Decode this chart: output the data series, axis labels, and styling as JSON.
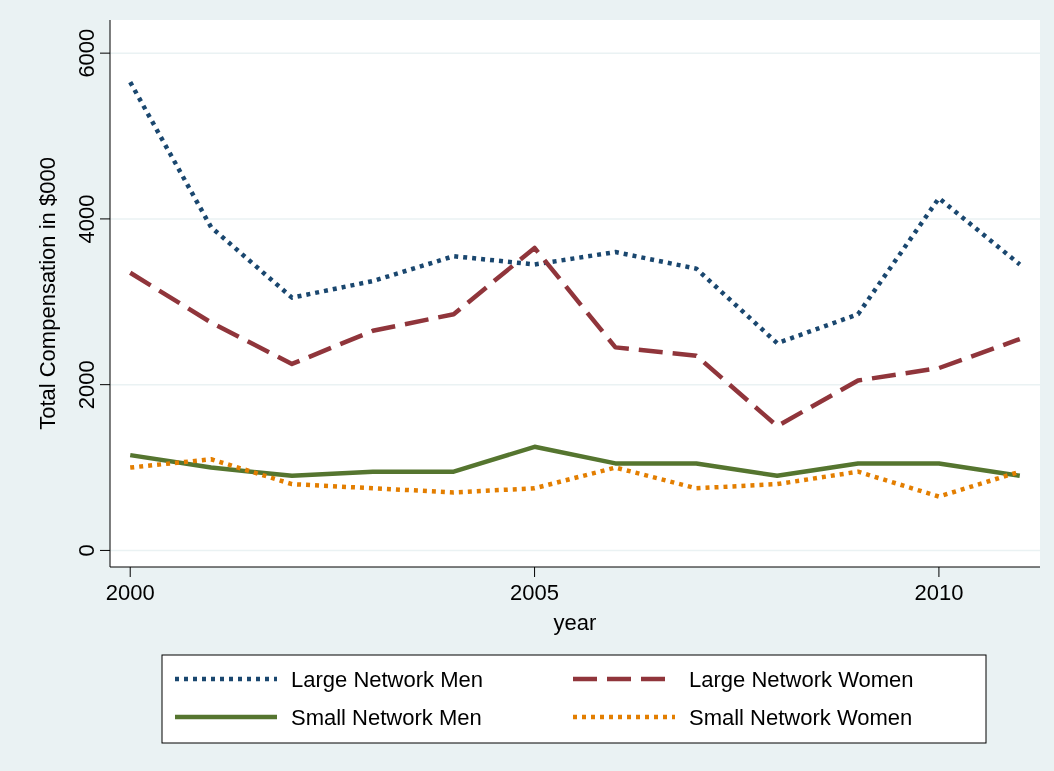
{
  "chart_data": {
    "type": "line",
    "xlabel": "year",
    "ylabel": "Total Compensation in $000",
    "x": [
      2000,
      2001,
      2002,
      2003,
      2004,
      2005,
      2006,
      2007,
      2008,
      2009,
      2010,
      2011
    ],
    "xlim": [
      1999.75,
      2011.25
    ],
    "xticks": [
      2000,
      2005,
      2010
    ],
    "ylim": [
      -200,
      6400
    ],
    "yticks": [
      0,
      2000,
      4000,
      6000
    ],
    "grid": "y",
    "legend": "bottom",
    "marker": "none",
    "series": [
      {
        "name": "Large Network Men",
        "color": "#1a476f",
        "line_style": "dotted",
        "values": [
          5650,
          3900,
          3050,
          3250,
          3550,
          3450,
          3600,
          3400,
          2500,
          2850,
          4250,
          3450
        ]
      },
      {
        "name": "Large Network Women",
        "color": "#90353b",
        "line_style": "dashed",
        "values": [
          3350,
          2750,
          2250,
          2650,
          2850,
          3650,
          2450,
          2350,
          1500,
          2050,
          2200,
          2550
        ]
      },
      {
        "name": "Small Network Men",
        "color": "#55752f",
        "line_style": "solid",
        "values": [
          1150,
          1000,
          900,
          950,
          950,
          1250,
          1050,
          1050,
          900,
          1050,
          1050,
          900
        ]
      },
      {
        "name": "Small Network Women",
        "color": "#e37e00",
        "line_style": "dotted",
        "values": [
          1000,
          1100,
          800,
          750,
          700,
          750,
          1000,
          750,
          800,
          950,
          650,
          950
        ]
      }
    ]
  }
}
